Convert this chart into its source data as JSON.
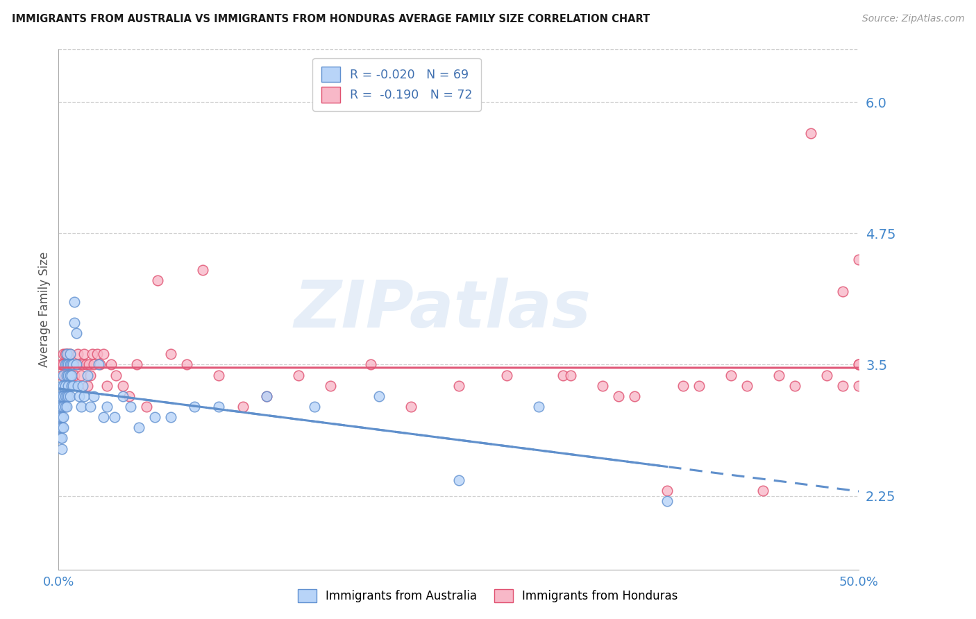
{
  "title": "IMMIGRANTS FROM AUSTRALIA VS IMMIGRANTS FROM HONDURAS AVERAGE FAMILY SIZE CORRELATION CHART",
  "source": "Source: ZipAtlas.com",
  "ylabel": "Average Family Size",
  "yticks": [
    2.25,
    3.5,
    4.75,
    6.0
  ],
  "xlim": [
    0.0,
    0.5
  ],
  "ylim": [
    1.55,
    6.5
  ],
  "watermark": "ZIPatlas",
  "legend_australia": "R = -0.020   N = 69",
  "legend_honduras": "R =  -0.190   N = 72",
  "label_australia": "Immigrants from Australia",
  "label_honduras": "Immigrants from Honduras",
  "color_australia_fill": "#b8d4f8",
  "color_australia_edge": "#6090d0",
  "color_honduras_fill": "#f8b8c8",
  "color_honduras_edge": "#e05070",
  "color_line_australia": "#6090cc",
  "color_line_honduras": "#e05878",
  "color_ticks": "#4488cc",
  "watermark_color": "#c8daf0",
  "aus_x": [
    0.001,
    0.001,
    0.001,
    0.001,
    0.001,
    0.002,
    0.002,
    0.002,
    0.002,
    0.002,
    0.002,
    0.002,
    0.003,
    0.003,
    0.003,
    0.003,
    0.003,
    0.003,
    0.004,
    0.004,
    0.004,
    0.004,
    0.005,
    0.005,
    0.005,
    0.005,
    0.005,
    0.006,
    0.006,
    0.006,
    0.006,
    0.007,
    0.007,
    0.007,
    0.007,
    0.008,
    0.008,
    0.008,
    0.009,
    0.009,
    0.01,
    0.01,
    0.011,
    0.011,
    0.012,
    0.013,
    0.014,
    0.015,
    0.016,
    0.018,
    0.02,
    0.022,
    0.025,
    0.028,
    0.03,
    0.035,
    0.04,
    0.045,
    0.05,
    0.06,
    0.07,
    0.085,
    0.1,
    0.13,
    0.16,
    0.2,
    0.25,
    0.3,
    0.38
  ],
  "aus_y": [
    3.2,
    3.1,
    3.0,
    2.9,
    2.8,
    3.3,
    3.2,
    3.1,
    3.0,
    2.9,
    2.8,
    2.7,
    3.4,
    3.3,
    3.2,
    3.1,
    3.0,
    2.9,
    3.5,
    3.3,
    3.2,
    3.1,
    3.6,
    3.5,
    3.4,
    3.2,
    3.1,
    3.5,
    3.4,
    3.3,
    3.2,
    3.6,
    3.5,
    3.4,
    3.2,
    3.5,
    3.4,
    3.3,
    3.5,
    3.3,
    4.1,
    3.9,
    3.8,
    3.5,
    3.3,
    3.2,
    3.1,
    3.3,
    3.2,
    3.4,
    3.1,
    3.2,
    3.5,
    3.0,
    3.1,
    3.0,
    3.2,
    3.1,
    2.9,
    3.0,
    3.0,
    3.1,
    3.1,
    3.2,
    3.1,
    3.2,
    2.4,
    3.1,
    2.2
  ],
  "hon_x": [
    0.001,
    0.002,
    0.002,
    0.003,
    0.003,
    0.004,
    0.004,
    0.005,
    0.005,
    0.006,
    0.006,
    0.007,
    0.007,
    0.008,
    0.009,
    0.01,
    0.011,
    0.012,
    0.013,
    0.014,
    0.015,
    0.016,
    0.017,
    0.018,
    0.019,
    0.02,
    0.021,
    0.022,
    0.024,
    0.026,
    0.028,
    0.03,
    0.033,
    0.036,
    0.04,
    0.044,
    0.049,
    0.055,
    0.062,
    0.07,
    0.08,
    0.09,
    0.1,
    0.115,
    0.13,
    0.15,
    0.17,
    0.195,
    0.22,
    0.25,
    0.28,
    0.315,
    0.35,
    0.39,
    0.43,
    0.45,
    0.47,
    0.49,
    0.5,
    0.5,
    0.5,
    0.5,
    0.49,
    0.48,
    0.46,
    0.44,
    0.42,
    0.4,
    0.38,
    0.36,
    0.34,
    0.32
  ],
  "hon_y": [
    3.5,
    3.4,
    3.5,
    3.6,
    3.5,
    3.4,
    3.6,
    3.5,
    3.6,
    3.4,
    3.6,
    3.5,
    3.6,
    3.4,
    3.5,
    3.4,
    3.5,
    3.6,
    3.5,
    3.4,
    3.5,
    3.6,
    3.5,
    3.3,
    3.5,
    3.4,
    3.6,
    3.5,
    3.6,
    3.5,
    3.6,
    3.3,
    3.5,
    3.4,
    3.3,
    3.2,
    3.5,
    3.1,
    4.3,
    3.6,
    3.5,
    4.4,
    3.4,
    3.1,
    3.2,
    3.4,
    3.3,
    3.5,
    3.1,
    3.3,
    3.4,
    3.4,
    3.2,
    3.3,
    3.3,
    3.4,
    5.7,
    4.2,
    3.5,
    3.5,
    4.5,
    3.3,
    3.3,
    3.4,
    3.3,
    2.3,
    3.4,
    3.3,
    2.3,
    3.2,
    3.3,
    3.4
  ]
}
